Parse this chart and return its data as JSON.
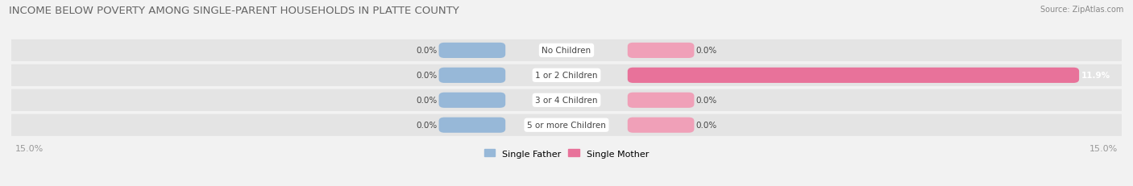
{
  "title": "INCOME BELOW POVERTY AMONG SINGLE-PARENT HOUSEHOLDS IN PLATTE COUNTY",
  "source": "Source: ZipAtlas.com",
  "categories": [
    "No Children",
    "1 or 2 Children",
    "3 or 4 Children",
    "5 or more Children"
  ],
  "single_father_values": [
    0.0,
    0.0,
    0.0,
    0.0
  ],
  "single_mother_values": [
    0.0,
    11.9,
    0.0,
    0.0
  ],
  "x_max": 15.0,
  "father_color": "#97B8D8",
  "mother_color": "#E8729A",
  "mother_color_zero": "#F0A0B8",
  "bg_color": "#F2F2F2",
  "row_bg_color": "#E4E4E4",
  "title_fontsize": 9.5,
  "source_fontsize": 7,
  "label_fontsize": 7.5,
  "category_fontsize": 7.5,
  "legend_fontsize": 8,
  "axis_label_color": "#999999",
  "text_color": "#444444",
  "white": "#FFFFFF"
}
